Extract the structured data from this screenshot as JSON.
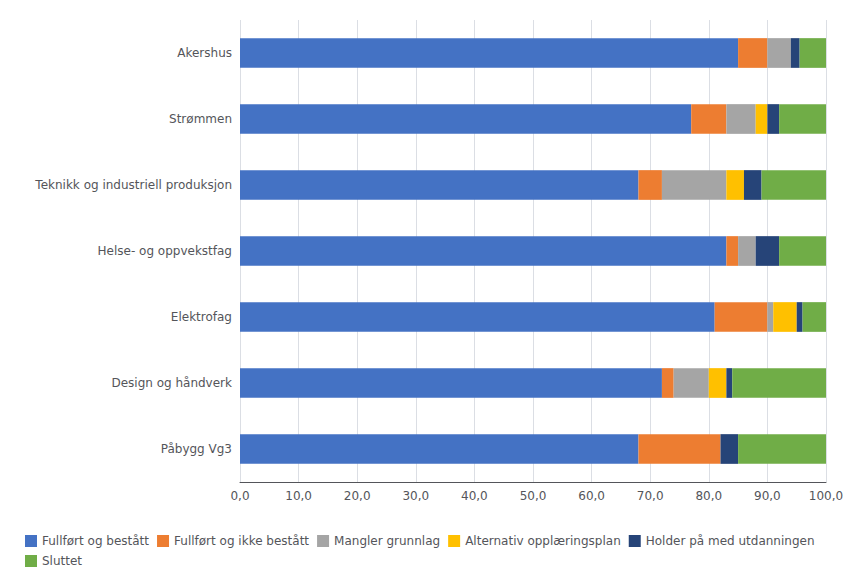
{
  "chart_data": {
    "type": "bar",
    "orientation": "horizontal",
    "stacked": true,
    "categories": [
      "Påbygg Vg3",
      "Design og håndverk",
      "Elektrofag",
      "Helse- og oppvekstfag",
      "Teknikk og industriell produksjon",
      "Strømmen",
      "Akershus"
    ],
    "series": [
      {
        "name": "Fullført og bestått",
        "color": "#4472C4",
        "values": [
          68.0,
          72.0,
          81.0,
          83.0,
          68.0,
          77.0,
          85.0
        ]
      },
      {
        "name": "Fullført og ikke bestått",
        "color": "#ED7D31",
        "values": [
          14.0,
          2.0,
          9.0,
          2.0,
          4.0,
          6.0,
          5.0
        ]
      },
      {
        "name": "Mangler grunnlag",
        "color": "#A5A5A5",
        "values": [
          0.0,
          6.0,
          1.0,
          3.0,
          11.0,
          5.0,
          4.0
        ]
      },
      {
        "name": "Alternativ opplæringsplan",
        "color": "#FFC000",
        "values": [
          0.0,
          3.0,
          4.0,
          0.0,
          3.0,
          2.0,
          0.0
        ]
      },
      {
        "name": "Holder på med utdanningen",
        "color": "#264478",
        "values": [
          3.0,
          1.0,
          1.0,
          4.0,
          3.0,
          2.0,
          1.5
        ]
      },
      {
        "name": "Sluttet",
        "color": "#70AD47",
        "values": [
          15.0,
          16.0,
          4.0,
          8.0,
          11.0,
          8.0,
          4.5
        ]
      }
    ],
    "xlim": [
      0,
      100
    ],
    "xticks": [
      {
        "value": 0,
        "label": "0,0"
      },
      {
        "value": 10,
        "label": "10,0"
      },
      {
        "value": 20,
        "label": "20,0"
      },
      {
        "value": 30,
        "label": "30,0"
      },
      {
        "value": 40,
        "label": "40,0"
      },
      {
        "value": 50,
        "label": "50,0"
      },
      {
        "value": 60,
        "label": "60,0"
      },
      {
        "value": 70,
        "label": "70,0"
      },
      {
        "value": 80,
        "label": "80,0"
      },
      {
        "value": 90,
        "label": "90,0"
      },
      {
        "value": 100,
        "label": "100,0"
      }
    ],
    "grid": true,
    "legend": "lower left"
  }
}
